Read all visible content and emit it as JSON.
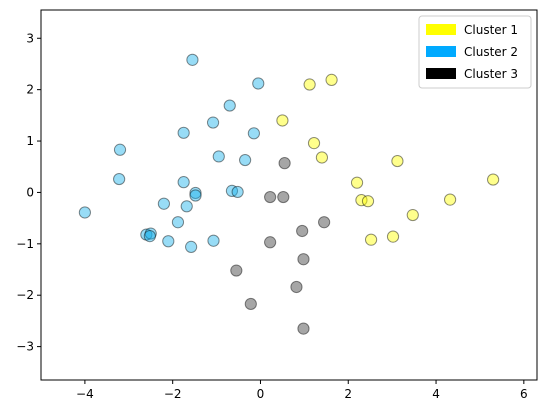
{
  "chart_data": {
    "type": "scatter",
    "title": "",
    "xlabel": "",
    "ylabel": "",
    "xlim": [
      -5.0,
      6.3
    ],
    "ylim": [
      -3.65,
      3.55
    ],
    "xticks": [
      -4,
      -2,
      0,
      2,
      4,
      6
    ],
    "yticks": [
      -3,
      -2,
      -1,
      0,
      1,
      2,
      3
    ],
    "grid": false,
    "legend_position": "top-right",
    "series": [
      {
        "name": "Cluster 1",
        "color": "#ffff00",
        "legend_color": "#ffff00",
        "points": [
          [
            1.12,
            2.1
          ],
          [
            1.62,
            2.19
          ],
          [
            0.5,
            1.4
          ],
          [
            1.22,
            0.96
          ],
          [
            1.4,
            0.68
          ],
          [
            3.12,
            0.61
          ],
          [
            5.3,
            0.25
          ],
          [
            2.2,
            0.19
          ],
          [
            2.3,
            -0.15
          ],
          [
            2.45,
            -0.17
          ],
          [
            4.32,
            -0.14
          ],
          [
            3.47,
            -0.44
          ],
          [
            2.52,
            -0.92
          ],
          [
            3.02,
            -0.86
          ]
        ]
      },
      {
        "name": "Cluster 2",
        "color": "#1ab2ec",
        "legend_color": "#00aaff",
        "points": [
          [
            -1.55,
            2.58
          ],
          [
            -0.05,
            2.12
          ],
          [
            -0.7,
            1.69
          ],
          [
            -1.08,
            1.36
          ],
          [
            -1.75,
            1.16
          ],
          [
            -0.15,
            1.15
          ],
          [
            -3.2,
            0.83
          ],
          [
            -0.95,
            0.7
          ],
          [
            -0.35,
            0.63
          ],
          [
            -3.22,
            0.26
          ],
          [
            -1.75,
            0.2
          ],
          [
            -0.65,
            0.03
          ],
          [
            -0.52,
            0.01
          ],
          [
            -1.48,
            -0.01
          ],
          [
            -1.48,
            -0.06
          ],
          [
            -2.2,
            -0.22
          ],
          [
            -1.68,
            -0.27
          ],
          [
            -4.0,
            -0.39
          ],
          [
            -1.88,
            -0.58
          ],
          [
            -2.6,
            -0.82
          ],
          [
            -2.5,
            -0.8
          ],
          [
            -2.52,
            -0.85
          ],
          [
            -2.1,
            -0.95
          ],
          [
            -1.07,
            -0.94
          ],
          [
            -1.58,
            -1.06
          ]
        ]
      },
      {
        "name": "Cluster 3",
        "color": "#3a3a3a",
        "legend_color": "#000000",
        "points": [
          [
            0.55,
            0.57
          ],
          [
            0.22,
            -0.09
          ],
          [
            0.52,
            -0.09
          ],
          [
            1.45,
            -0.58
          ],
          [
            0.95,
            -0.75
          ],
          [
            0.22,
            -0.97
          ],
          [
            0.98,
            -1.3
          ],
          [
            -0.55,
            -1.52
          ],
          [
            0.82,
            -1.84
          ],
          [
            -0.22,
            -2.17
          ],
          [
            0.98,
            -2.65
          ]
        ]
      }
    ]
  }
}
